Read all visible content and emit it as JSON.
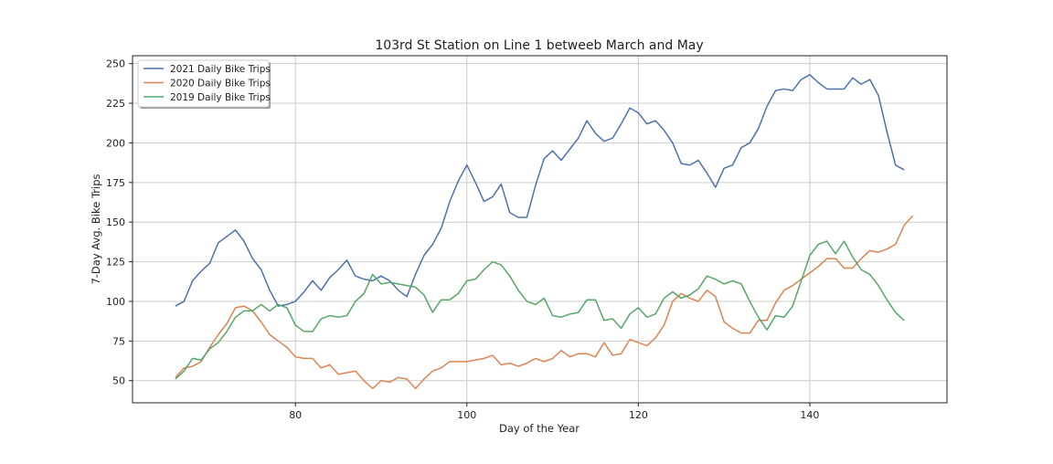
{
  "chart_data": {
    "type": "line",
    "title": "103rd St Station on Line 1 betweeb March and May",
    "xlabel": "Day of the Year",
    "ylabel": "7-Day Avg. Bike Trips",
    "xlim": [
      61,
      156
    ],
    "ylim": [
      36,
      255
    ],
    "xticks": [
      80,
      100,
      120,
      140
    ],
    "yticks": [
      50,
      75,
      100,
      125,
      150,
      175,
      200,
      225,
      250
    ],
    "grid": true,
    "legend_position": "top-left",
    "colors": {
      "2021": "#4c72b0",
      "2020": "#dd8452",
      "2019": "#55a868",
      "grid": "#cccccc",
      "axis": "#222222"
    },
    "series": [
      {
        "name": "2021 Daily Bike Trips",
        "color": "#4c72b0",
        "x": [
          66,
          67,
          68,
          69,
          70,
          71,
          72,
          73,
          74,
          75,
          76,
          77,
          78,
          79,
          80,
          81,
          82,
          83,
          84,
          85,
          86,
          87,
          88,
          89,
          90,
          91,
          92,
          93,
          94,
          95,
          96,
          97,
          98,
          99,
          100,
          101,
          102,
          103,
          104,
          105,
          106,
          107,
          108,
          109,
          110,
          111,
          112,
          113,
          114,
          115,
          116,
          117,
          118,
          119,
          120,
          121,
          122,
          123,
          124,
          125,
          126,
          127,
          128,
          129,
          130,
          131,
          132,
          133,
          134,
          135,
          136,
          137,
          138,
          139,
          140,
          141,
          142,
          143,
          144,
          145,
          146,
          147,
          148,
          149,
          150,
          151
        ],
        "values": [
          97,
          100,
          113,
          119,
          124,
          137,
          141,
          145,
          138,
          127,
          120,
          107,
          97,
          98,
          100,
          106,
          113,
          107,
          115,
          120,
          126,
          116,
          114,
          113,
          116,
          113,
          107,
          103,
          117,
          129,
          136,
          146,
          163,
          176,
          186,
          175,
          163,
          166,
          174,
          156,
          153,
          153,
          173,
          190,
          195,
          189,
          196,
          203,
          214,
          206,
          201,
          203,
          212,
          222,
          219,
          212,
          214,
          208,
          200,
          187,
          186,
          189,
          181,
          172,
          184,
          186,
          197,
          200,
          209,
          223,
          233,
          234,
          233,
          240,
          243,
          238,
          234,
          234,
          234,
          241,
          237,
          240,
          230,
          207,
          186,
          183
        ]
      },
      {
        "name": "2020 Daily Bike Trips",
        "color": "#dd8452",
        "x": [
          66,
          67,
          68,
          69,
          70,
          71,
          72,
          73,
          74,
          75,
          76,
          77,
          78,
          79,
          80,
          81,
          82,
          83,
          84,
          85,
          86,
          87,
          88,
          89,
          90,
          91,
          92,
          93,
          94,
          95,
          96,
          97,
          98,
          99,
          100,
          101,
          102,
          103,
          104,
          105,
          106,
          107,
          108,
          109,
          110,
          111,
          112,
          113,
          114,
          115,
          116,
          117,
          118,
          119,
          120,
          121,
          122,
          123,
          124,
          125,
          126,
          127,
          128,
          129,
          130,
          131,
          132,
          133,
          134,
          135,
          136,
          137,
          138,
          139,
          140,
          141,
          142,
          143,
          144,
          145,
          146,
          147,
          148,
          149,
          150,
          151,
          152
        ],
        "values": [
          52,
          58,
          59,
          62,
          71,
          79,
          86,
          96,
          97,
          94,
          87,
          79,
          75,
          71,
          65,
          64,
          64,
          58,
          60,
          54,
          55,
          56,
          50,
          45,
          50,
          49,
          52,
          51,
          45,
          51,
          56,
          58,
          62,
          62,
          62,
          63,
          64,
          66,
          60,
          61,
          59,
          61,
          64,
          62,
          64,
          69,
          65,
          67,
          67,
          65,
          74,
          66,
          67,
          76,
          74,
          72,
          77,
          85,
          100,
          105,
          102,
          100,
          107,
          103,
          87,
          83,
          80,
          80,
          88,
          88,
          99,
          107,
          110,
          114,
          118,
          122,
          127,
          127,
          121,
          121,
          127,
          132,
          131,
          133,
          136,
          148,
          154
        ]
      },
      {
        "name": "2019 Daily Bike Trips",
        "color": "#55a868",
        "x": [
          66,
          67,
          68,
          69,
          70,
          71,
          72,
          73,
          74,
          75,
          76,
          77,
          78,
          79,
          80,
          81,
          82,
          83,
          84,
          85,
          86,
          87,
          88,
          89,
          90,
          91,
          92,
          93,
          94,
          95,
          96,
          97,
          98,
          99,
          100,
          101,
          102,
          103,
          104,
          105,
          106,
          107,
          108,
          109,
          110,
          111,
          112,
          113,
          114,
          115,
          116,
          117,
          118,
          119,
          120,
          121,
          122,
          123,
          124,
          125,
          126,
          127,
          128,
          129,
          130,
          131,
          132,
          133,
          134,
          135,
          136,
          137,
          138,
          139,
          140,
          141,
          142,
          143,
          144,
          145,
          146,
          147,
          148,
          149,
          150,
          151
        ],
        "values": [
          51,
          56,
          64,
          63,
          70,
          74,
          81,
          90,
          94,
          94,
          98,
          94,
          98,
          96,
          85,
          81,
          81,
          89,
          91,
          90,
          91,
          100,
          105,
          117,
          111,
          112,
          111,
          110,
          109,
          104,
          93,
          101,
          101,
          105,
          113,
          114,
          120,
          125,
          123,
          116,
          107,
          100,
          98,
          102,
          91,
          90,
          92,
          93,
          101,
          101,
          88,
          89,
          83,
          92,
          96,
          90,
          92,
          102,
          106,
          102,
          104,
          108,
          116,
          114,
          111,
          113,
          111,
          100,
          90,
          82,
          91,
          90,
          97,
          113,
          129,
          136,
          138,
          130,
          138,
          128,
          120,
          117,
          110,
          101,
          93,
          88
        ]
      }
    ]
  }
}
